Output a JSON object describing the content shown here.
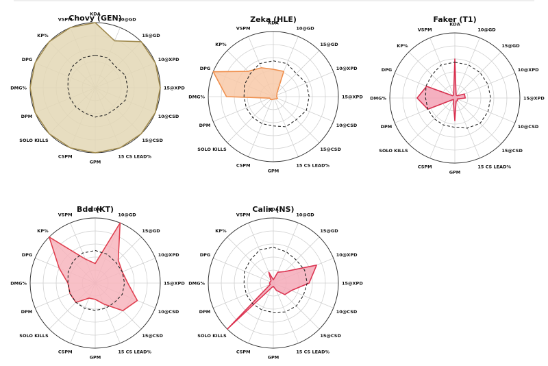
{
  "chart_data": [
    {
      "type": "radar",
      "title": "Chovy (GEN)",
      "categories": [
        "KDA",
        "10@GD",
        "15@GD",
        "10@XPD",
        "15@XPD",
        "10@CSD",
        "15@CSD",
        "15 CS LEAD%",
        "GPM",
        "CSPM",
        "SOLO KILLS",
        "DPM",
        "DMG%",
        "DPG",
        "KP%",
        "VSPM"
      ],
      "fill_color": "#e3d7b5",
      "edge_color": "#a08a4e",
      "values": [
        1.0,
        0.78,
        1.0,
        1.0,
        1.0,
        1.0,
        1.0,
        1.0,
        1.0,
        1.0,
        1.0,
        1.0,
        1.0,
        1.0,
        1.0,
        1.0
      ],
      "baseline": [
        0.5,
        0.5,
        0.45,
        0.5,
        0.5,
        0.5,
        0.45,
        0.45,
        0.45,
        0.42,
        0.42,
        0.42,
        0.42,
        0.45,
        0.48,
        0.5
      ]
    },
    {
      "type": "radar",
      "title": "Zeka (HLE)",
      "categories": [
        "KDA",
        "10@GD",
        "15@GD",
        "10@XPD",
        "15@XPD",
        "10@CSD",
        "15@CSD",
        "15 CS LEAD%",
        "GPM",
        "CSPM",
        "SOLO KILLS",
        "DPM",
        "DMG%",
        "DPG",
        "KP%",
        "VSPM"
      ],
      "fill_color": "#f8c9a8",
      "edge_color": "#f0904e",
      "values": [
        0.42,
        0.42,
        0.08,
        0.06,
        0.05,
        0.07,
        0.05,
        0.04,
        0.04,
        0.05,
        0.06,
        0.06,
        0.72,
        1.0,
        0.55,
        0.48
      ],
      "baseline": [
        0.55,
        0.55,
        0.5,
        0.55,
        0.55,
        0.55,
        0.5,
        0.5,
        0.45,
        0.45,
        0.45,
        0.45,
        0.45,
        0.48,
        0.5,
        0.55
      ]
    },
    {
      "type": "radar",
      "title": "Faker (T1)",
      "categories": [
        "KDA",
        "10@GD",
        "15@GD",
        "10@XPD",
        "15@XPD",
        "10@CSD",
        "15@CSD",
        "15 CS LEAD%",
        "GPM",
        "CSPM",
        "SOLO KILLS",
        "DPM",
        "DMG%",
        "DPG",
        "KP%",
        "VSPM"
      ],
      "fill_color": "#f3a2b5",
      "edge_color": "#d8314f",
      "values": [
        0.6,
        0.05,
        0.05,
        0.16,
        0.16,
        0.04,
        0.06,
        0.05,
        0.35,
        0.06,
        0.03,
        0.45,
        0.58,
        0.47,
        0.05,
        0.05
      ],
      "baseline": [
        0.55,
        0.55,
        0.55,
        0.55,
        0.55,
        0.55,
        0.55,
        0.5,
        0.45,
        0.45,
        0.45,
        0.45,
        0.45,
        0.48,
        0.5,
        0.55
      ]
    },
    {
      "type": "radar",
      "title": "Bdd (KT)",
      "categories": [
        "KDA",
        "10@GD",
        "15@GD",
        "10@XPD",
        "15@XPD",
        "10@CSD",
        "15@CSD",
        "15 CS LEAD%",
        "GPM",
        "CSPM",
        "SOLO KILLS",
        "DPM",
        "DMG%",
        "DPG",
        "KP%",
        "VSPM"
      ],
      "fill_color": "#f7b5bd",
      "edge_color": "#e04050",
      "values": [
        0.3,
        1.0,
        0.5,
        0.45,
        0.5,
        0.7,
        0.6,
        0.35,
        0.25,
        0.25,
        0.42,
        0.42,
        0.42,
        0.6,
        1.0,
        0.4
      ],
      "baseline": [
        0.5,
        0.48,
        0.45,
        0.45,
        0.45,
        0.45,
        0.42,
        0.42,
        0.42,
        0.42,
        0.42,
        0.42,
        0.42,
        0.45,
        0.48,
        0.5
      ]
    },
    {
      "type": "radar",
      "title": "Calix (NS)",
      "categories": [
        "KDA",
        "10@GD",
        "15@GD",
        "10@XPD",
        "15@XPD",
        "10@CSD",
        "15@CSD",
        "15 CS LEAD%",
        "GPM",
        "CSPM",
        "SOLO KILLS",
        "DPM",
        "DMG%",
        "DPG",
        "KP%",
        "VSPM"
      ],
      "fill_color": "#f4aab8",
      "edge_color": "#dc3552",
      "values": [
        0.05,
        0.18,
        0.25,
        0.72,
        0.55,
        0.3,
        0.25,
        0.12,
        0.05,
        0.08,
        1.0,
        0.05,
        0.06,
        0.05,
        0.05,
        0.18
      ],
      "baseline": [
        0.55,
        0.52,
        0.5,
        0.52,
        0.52,
        0.5,
        0.5,
        0.48,
        0.45,
        0.45,
        0.45,
        0.45,
        0.45,
        0.48,
        0.5,
        0.55
      ]
    }
  ]
}
